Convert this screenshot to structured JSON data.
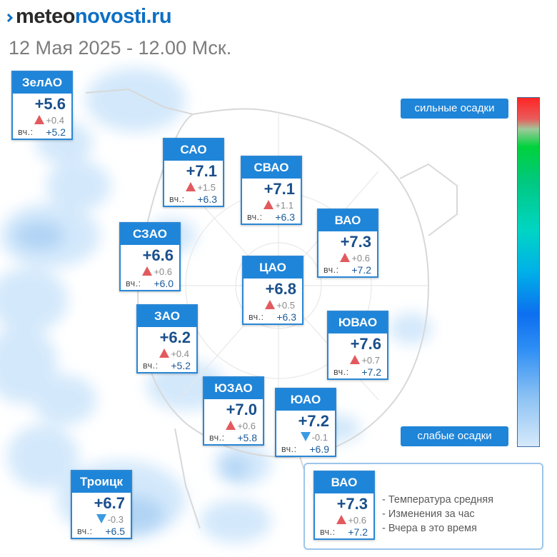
{
  "header": {
    "logo_prefix": "meteo",
    "logo_suffix": "novosti.ru",
    "datetime": "12 Мая 2025 - 12.00 Мск."
  },
  "scale": {
    "top_label": "сильные осадки",
    "bottom_label": "слабые осадки"
  },
  "yesterday_label": "вч.:",
  "cards": [
    {
      "name": "ЗелАО",
      "temp": "+5.6",
      "trend": "up",
      "delta": "+0.4",
      "yesterday": "+5.2"
    },
    {
      "name": "САО",
      "temp": "+7.1",
      "trend": "up",
      "delta": "+1.5",
      "yesterday": "+6.3"
    },
    {
      "name": "СВАО",
      "temp": "+7.1",
      "trend": "up",
      "delta": "+1.1",
      "yesterday": "+6.3"
    },
    {
      "name": "ВАО",
      "temp": "+7.3",
      "trend": "up",
      "delta": "+0.6",
      "yesterday": "+7.2"
    },
    {
      "name": "СЗАО",
      "temp": "+6.6",
      "trend": "up",
      "delta": "+0.6",
      "yesterday": "+6.0"
    },
    {
      "name": "ЦАО",
      "temp": "+6.8",
      "trend": "up",
      "delta": "+0.5",
      "yesterday": "+6.3"
    },
    {
      "name": "ЗАО",
      "temp": "+6.2",
      "trend": "up",
      "delta": "+0.4",
      "yesterday": "+5.2"
    },
    {
      "name": "ЮВАО",
      "temp": "+7.6",
      "trend": "up",
      "delta": "+0.7",
      "yesterday": "+7.2"
    },
    {
      "name": "ЮЗАО",
      "temp": "+7.0",
      "trend": "up",
      "delta": "+0.6",
      "yesterday": "+5.8"
    },
    {
      "name": "ЮАО",
      "temp": "+7.2",
      "trend": "down",
      "delta": "-0.1",
      "yesterday": "+6.9"
    },
    {
      "name": "Троицк",
      "temp": "+6.7",
      "trend": "down",
      "delta": "-0.3",
      "yesterday": "+6.5"
    }
  ],
  "legend": {
    "sample": {
      "name": "ВАО",
      "temp": "+7.3",
      "trend": "up",
      "delta": "+0.6",
      "yesterday": "+7.2"
    },
    "lines": [
      "- Температура средняя",
      "- Изменения за час",
      "- Вчера в это время"
    ]
  },
  "colors": {
    "card_header": "#1f85d8",
    "temp_text": "#1a4f8a",
    "trend_up": "#e25a5e",
    "trend_down": "#3a9ae2",
    "precip_light": "#cfe6fb"
  }
}
